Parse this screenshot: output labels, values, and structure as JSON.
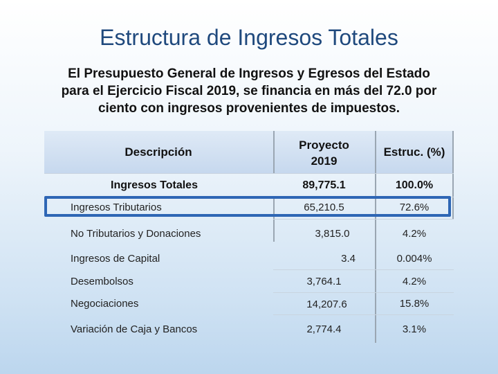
{
  "slide": {
    "title": "Estructura de Ingresos Totales",
    "subtitle_lines": [
      "El Presupuesto General de Ingresos y Egresos del Estado",
      "para el Ejercicio Fiscal 2019, se financia en más del 72.0 por",
      "ciento con ingresos provenientes de impuestos."
    ]
  },
  "table": {
    "headers": {
      "descripcion": "Descripción",
      "proyecto_line1": "Proyecto",
      "proyecto_line2": "2019",
      "estruc": "Estruc. (%)"
    },
    "rows": [
      {
        "desc": "Ingresos Totales",
        "proyecto": "89,775.1",
        "estruc": "100.0%"
      },
      {
        "desc": "Ingresos Tributarios",
        "proyecto": "65,210.5",
        "estruc": "72.6%"
      },
      {
        "desc": "No Tributarios y Donaciones",
        "proyecto": "3,815.0",
        "estruc": "4.2%"
      },
      {
        "desc": "Ingresos de Capital",
        "proyecto": "3.4",
        "estruc": "0.004%"
      },
      {
        "desc": "Desembolsos",
        "proyecto": "3,764.1",
        "estruc": "4.2%"
      },
      {
        "desc": "Negociaciones",
        "proyecto": "14,207.6",
        "estruc": "15.8%"
      },
      {
        "desc": "Variación de Caja y Bancos",
        "proyecto": "2,774.4",
        "estruc": "3.1%"
      }
    ]
  },
  "colors": {
    "title": "#1f497d",
    "highlight_border": "#2e66b5",
    "header_band": "#c6d8ee"
  }
}
